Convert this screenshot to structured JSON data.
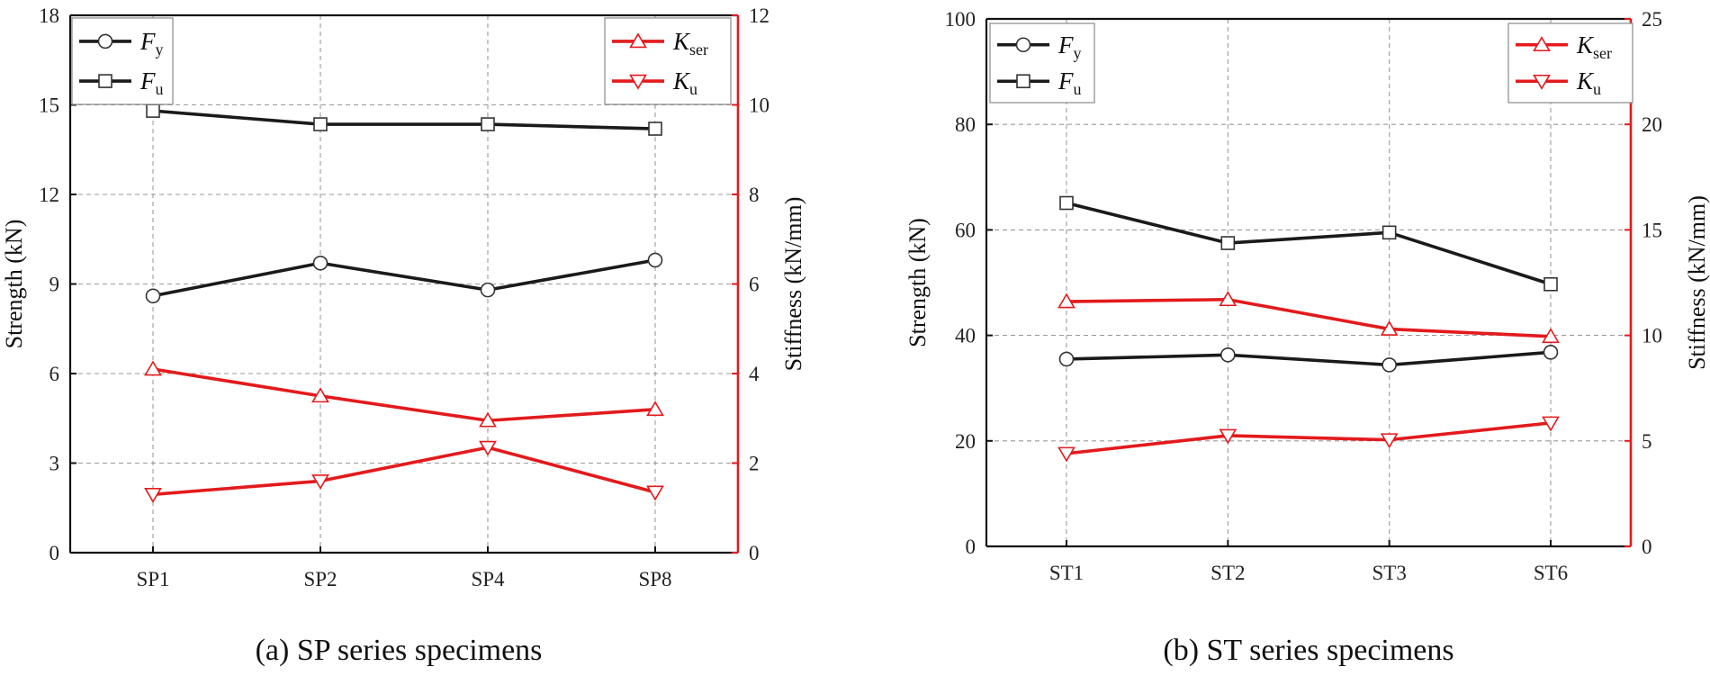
{
  "chart_data": [
    {
      "type": "line",
      "caption": "(a) SP series specimens",
      "categories": [
        "SP1",
        "SP2",
        "SP4",
        "SP8"
      ],
      "left_axis": {
        "label": "Strength (kN)",
        "range": [
          0,
          18
        ],
        "ticks": [
          0,
          3,
          6,
          9,
          12,
          15,
          18
        ]
      },
      "right_axis": {
        "label": "Stiffness (kN/mm)",
        "range": [
          0,
          12
        ],
        "ticks": [
          0,
          2,
          4,
          6,
          8,
          10,
          12
        ]
      },
      "series": [
        {
          "name": "Fy",
          "symbol": "F",
          "subscript": "y",
          "axis": "left",
          "color": "#1a1a1a",
          "marker": "circle",
          "values": [
            8.6,
            9.7,
            8.8,
            9.8
          ]
        },
        {
          "name": "Fu",
          "symbol": "F",
          "subscript": "u",
          "axis": "left",
          "color": "#1a1a1a",
          "marker": "square",
          "values": [
            14.8,
            14.35,
            14.35,
            14.2
          ]
        },
        {
          "name": "Kser",
          "symbol": "K",
          "subscript": "ser",
          "axis": "right",
          "color": "#e31a1c",
          "marker": "triangle-up",
          "values": [
            4.1,
            3.5,
            2.95,
            3.2
          ]
        },
        {
          "name": "Ku",
          "symbol": "K",
          "subscript": "u",
          "axis": "right",
          "color": "#e31a1c",
          "marker": "triangle-down",
          "values": [
            1.3,
            1.6,
            2.35,
            1.35
          ]
        }
      ],
      "legend_left": "top-left",
      "legend_right": "top-right",
      "grid": true
    },
    {
      "type": "line",
      "caption": "(b) ST series specimens",
      "categories": [
        "ST1",
        "ST2",
        "ST3",
        "ST6"
      ],
      "left_axis": {
        "label": "Strength (kN)",
        "range": [
          0,
          100
        ],
        "ticks": [
          0,
          20,
          40,
          60,
          80,
          100
        ]
      },
      "right_axis": {
        "label": "Stiffness (kN/mm)",
        "range": [
          0,
          25
        ],
        "ticks": [
          0,
          5,
          10,
          15,
          20,
          25
        ]
      },
      "series": [
        {
          "name": "Fy",
          "symbol": "F",
          "subscript": "y",
          "axis": "left",
          "color": "#1a1a1a",
          "marker": "circle",
          "values": [
            35.5,
            36.3,
            34.4,
            36.8
          ]
        },
        {
          "name": "Fu",
          "symbol": "F",
          "subscript": "u",
          "axis": "left",
          "color": "#1a1a1a",
          "marker": "square",
          "values": [
            65.1,
            57.5,
            59.5,
            49.7
          ]
        },
        {
          "name": "Kser",
          "symbol": "K",
          "subscript": "ser",
          "axis": "right",
          "color": "#e31a1c",
          "marker": "triangle-up",
          "values": [
            11.6,
            11.7,
            10.3,
            9.95
          ]
        },
        {
          "name": "Ku",
          "symbol": "K",
          "subscript": "u",
          "axis": "right",
          "color": "#e31a1c",
          "marker": "triangle-down",
          "values": [
            4.4,
            5.25,
            5.05,
            5.85
          ]
        }
      ],
      "legend_left": "top-left",
      "legend_right": "top-right",
      "grid": true
    }
  ]
}
